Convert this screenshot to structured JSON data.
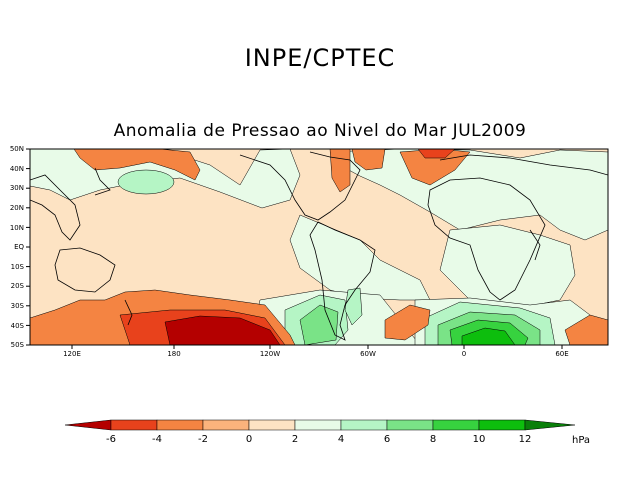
{
  "header": {
    "title": "INPE/CPTEC",
    "subtitle": "Anomalia de Pressao ao Nivel do Mar JUL2009"
  },
  "map": {
    "lat_labels": [
      "50N",
      "40N",
      "30N",
      "20N",
      "10N",
      "EQ",
      "10S",
      "20S",
      "30S",
      "40S",
      "50S"
    ],
    "lon_labels": [
      "120E",
      "180",
      "120W",
      "60W",
      "0",
      "60E"
    ],
    "background_color": "#fde3c3",
    "regions": [
      {
        "name": "anomaly-north-pacific-high",
        "value": 2
      },
      {
        "name": "anomaly-south-pacific-low",
        "value": -6
      },
      {
        "name": "anomaly-south-atlantic-high",
        "value": 10
      },
      {
        "name": "anomaly-southeast-pacific-high",
        "value": 6
      }
    ]
  },
  "colorbar": {
    "labels": [
      "-6",
      "-4",
      "-2",
      "0",
      "2",
      "4",
      "6",
      "8",
      "10",
      "12"
    ],
    "unit": "hPa",
    "colors": [
      "#b40000",
      "#e8421c",
      "#f48442",
      "#fbb37c",
      "#fde3c3",
      "#e8fbe8",
      "#b5f5c5",
      "#7ae387",
      "#37d23f",
      "#0dbe0d",
      "#0ba10b",
      "#0a7f0a"
    ]
  }
}
